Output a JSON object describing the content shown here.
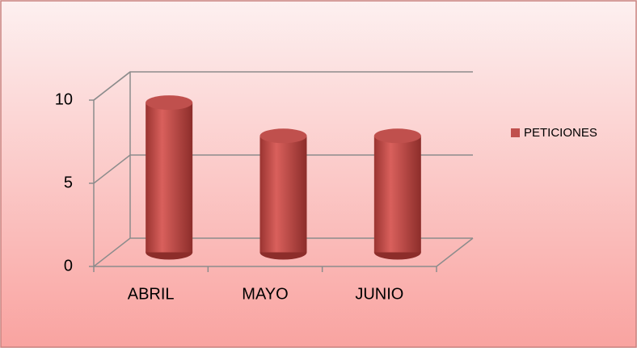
{
  "chart_data": {
    "type": "bar3d",
    "categories": [
      "ABRIL",
      "MAYO",
      "JUNIO"
    ],
    "series": [
      {
        "name": "PETICIONES",
        "color": "#c0504d",
        "values": [
          9,
          7,
          7
        ]
      }
    ],
    "ylim": [
      0,
      10
    ],
    "yticks": [
      0,
      5,
      10
    ],
    "grid": true,
    "legend": "right"
  }
}
